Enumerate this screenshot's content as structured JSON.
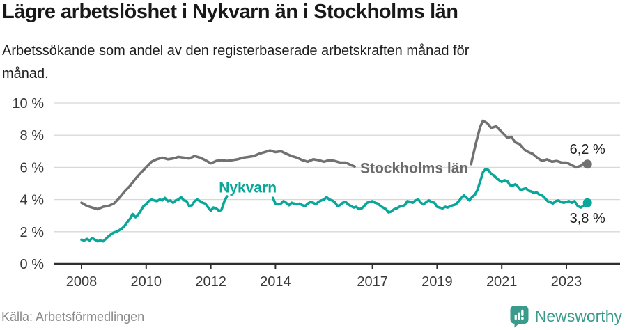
{
  "header": {
    "title": "Lägre arbetslöshet i Nykvarn än i Stockholms län",
    "subtitle_lines": [
      "Arbetssökande som andel av den registerbaserade arbetskraften månad för",
      "månad."
    ]
  },
  "footer": {
    "source": "Källa: Arbetsförmedlingen",
    "brand_name": "Newsworthy",
    "brand_icon": "bar-chart-speech-bubble-icon"
  },
  "colors": {
    "series_gray": "#717171",
    "series_gray_label": "#6b6b6b",
    "series_teal": "#0aa69a",
    "brand_teal": "#3a9a8c",
    "gridline": "#d8d8d8",
    "axis": "#2f2f2f",
    "tick_text": "#383838",
    "value_text": "#1f1f1f"
  },
  "chart_data": {
    "type": "line",
    "unit": "%",
    "grid": "horizontal",
    "x_axis": {
      "tick_years": [
        2008,
        2010,
        2012,
        2014,
        2017,
        2019,
        2021,
        2023
      ],
      "range_years": [
        2008,
        2023.65
      ]
    },
    "y_axis": {
      "tick_values": [
        0,
        2,
        4,
        6,
        8,
        10
      ],
      "tick_labels": [
        "0 %",
        "2 %",
        "4 %",
        "6 %",
        "8 %",
        "10 %"
      ],
      "range": [
        0,
        10
      ]
    },
    "series": [
      {
        "id": "stockholms-lan",
        "name": "Stockholms län",
        "color": "#717171",
        "label_color": "#6b6b6b",
        "inline_label": {
          "text": "Stockholms län",
          "x": 2016.62,
          "y": 5.95
        },
        "end_label": "6,2 %",
        "end_value": 6.2,
        "end_label_position": "above",
        "segments": [
          [
            [
              2008.0,
              3.8
            ],
            [
              2008.17,
              3.6
            ],
            [
              2008.33,
              3.5
            ],
            [
              2008.5,
              3.4
            ],
            [
              2008.67,
              3.55
            ],
            [
              2008.83,
              3.6
            ],
            [
              2009.0,
              3.75
            ],
            [
              2009.17,
              4.1
            ],
            [
              2009.33,
              4.5
            ],
            [
              2009.5,
              4.85
            ],
            [
              2009.67,
              5.3
            ],
            [
              2009.83,
              5.65
            ],
            [
              2010.0,
              6.0
            ],
            [
              2010.17,
              6.35
            ],
            [
              2010.33,
              6.5
            ],
            [
              2010.5,
              6.6
            ],
            [
              2010.67,
              6.5
            ],
            [
              2010.83,
              6.55
            ],
            [
              2011.0,
              6.65
            ],
            [
              2011.17,
              6.6
            ],
            [
              2011.33,
              6.55
            ],
            [
              2011.5,
              6.7
            ],
            [
              2011.67,
              6.6
            ],
            [
              2011.83,
              6.45
            ],
            [
              2012.0,
              6.25
            ],
            [
              2012.17,
              6.4
            ],
            [
              2012.33,
              6.45
            ],
            [
              2012.5,
              6.4
            ],
            [
              2012.67,
              6.45
            ],
            [
              2012.83,
              6.5
            ],
            [
              2013.0,
              6.6
            ],
            [
              2013.17,
              6.65
            ],
            [
              2013.33,
              6.7
            ],
            [
              2013.5,
              6.85
            ],
            [
              2013.67,
              6.95
            ],
            [
              2013.83,
              7.05
            ],
            [
              2014.0,
              6.95
            ],
            [
              2014.17,
              7.0
            ],
            [
              2014.33,
              6.85
            ],
            [
              2014.5,
              6.7
            ],
            [
              2014.67,
              6.6
            ],
            [
              2014.83,
              6.45
            ],
            [
              2015.0,
              6.35
            ],
            [
              2015.17,
              6.5
            ],
            [
              2015.33,
              6.45
            ],
            [
              2015.5,
              6.35
            ],
            [
              2015.67,
              6.45
            ],
            [
              2015.83,
              6.4
            ],
            [
              2016.0,
              6.3
            ],
            [
              2016.17,
              6.3
            ],
            [
              2016.33,
              6.15
            ],
            [
              2016.45,
              6.05
            ]
          ],
          [
            [
              2020.05,
              6.2
            ],
            [
              2020.2,
              7.5
            ],
            [
              2020.33,
              8.5
            ],
            [
              2020.42,
              8.9
            ],
            [
              2020.55,
              8.75
            ],
            [
              2020.67,
              8.45
            ],
            [
              2020.83,
              8.55
            ],
            [
              2020.95,
              8.3
            ],
            [
              2021.05,
              8.1
            ],
            [
              2021.17,
              7.85
            ],
            [
              2021.3,
              7.9
            ],
            [
              2021.42,
              7.55
            ],
            [
              2021.55,
              7.45
            ],
            [
              2021.7,
              7.1
            ],
            [
              2021.83,
              6.95
            ],
            [
              2021.95,
              6.85
            ],
            [
              2022.1,
              6.6
            ],
            [
              2022.25,
              6.4
            ],
            [
              2022.4,
              6.5
            ],
            [
              2022.55,
              6.35
            ],
            [
              2022.7,
              6.4
            ],
            [
              2022.85,
              6.3
            ],
            [
              2023.0,
              6.3
            ],
            [
              2023.15,
              6.15
            ],
            [
              2023.3,
              6.0
            ],
            [
              2023.45,
              6.1
            ],
            [
              2023.55,
              6.3
            ],
            [
              2023.65,
              6.2
            ]
          ]
        ]
      },
      {
        "id": "nykvarn",
        "name": "Nykvarn",
        "color": "#0aa69a",
        "label_color": "#0aa69a",
        "inline_label": {
          "text": "Nykvarn",
          "x": 2012.25,
          "y": 4.75
        },
        "end_label": "3,8 %",
        "end_value": 3.8,
        "end_label_position": "below",
        "segments": [
          [
            [
              2008.0,
              1.5
            ],
            [
              2008.08,
              1.45
            ],
            [
              2008.17,
              1.55
            ],
            [
              2008.25,
              1.45
            ],
            [
              2008.33,
              1.6
            ],
            [
              2008.42,
              1.5
            ],
            [
              2008.5,
              1.4
            ],
            [
              2008.58,
              1.45
            ],
            [
              2008.67,
              1.4
            ],
            [
              2008.75,
              1.55
            ],
            [
              2008.83,
              1.7
            ],
            [
              2008.92,
              1.85
            ],
            [
              2009.0,
              1.95
            ],
            [
              2009.08,
              2.0
            ],
            [
              2009.17,
              2.1
            ],
            [
              2009.25,
              2.2
            ],
            [
              2009.33,
              2.35
            ],
            [
              2009.42,
              2.6
            ],
            [
              2009.5,
              2.8
            ],
            [
              2009.58,
              3.1
            ],
            [
              2009.67,
              2.9
            ],
            [
              2009.75,
              3.05
            ],
            [
              2009.83,
              3.3
            ],
            [
              2009.92,
              3.6
            ],
            [
              2010.0,
              3.7
            ],
            [
              2010.08,
              3.9
            ],
            [
              2010.17,
              4.0
            ],
            [
              2010.25,
              3.95
            ],
            [
              2010.33,
              3.9
            ],
            [
              2010.42,
              4.0
            ],
            [
              2010.5,
              3.95
            ],
            [
              2010.58,
              4.1
            ],
            [
              2010.67,
              3.9
            ],
            [
              2010.75,
              3.95
            ],
            [
              2010.83,
              3.8
            ],
            [
              2010.92,
              3.95
            ],
            [
              2011.0,
              4.0
            ],
            [
              2011.08,
              4.15
            ],
            [
              2011.17,
              3.95
            ],
            [
              2011.25,
              3.9
            ],
            [
              2011.33,
              3.6
            ],
            [
              2011.42,
              3.65
            ],
            [
              2011.5,
              3.9
            ],
            [
              2011.58,
              4.0
            ],
            [
              2011.67,
              3.9
            ],
            [
              2011.75,
              3.8
            ],
            [
              2011.83,
              3.75
            ],
            [
              2011.92,
              3.5
            ],
            [
              2012.0,
              3.3
            ],
            [
              2012.08,
              3.5
            ],
            [
              2012.17,
              3.45
            ],
            [
              2012.25,
              3.3
            ],
            [
              2012.33,
              3.35
            ],
            [
              2012.42,
              3.9
            ],
            [
              2012.5,
              4.2
            ]
          ],
          [
            [
              2013.92,
              4.1
            ],
            [
              2014.0,
              3.75
            ],
            [
              2014.08,
              3.7
            ],
            [
              2014.17,
              3.75
            ],
            [
              2014.25,
              3.9
            ],
            [
              2014.33,
              3.8
            ],
            [
              2014.42,
              3.65
            ],
            [
              2014.5,
              3.8
            ],
            [
              2014.58,
              3.75
            ],
            [
              2014.67,
              3.7
            ],
            [
              2014.75,
              3.75
            ],
            [
              2014.83,
              3.65
            ],
            [
              2014.92,
              3.6
            ],
            [
              2015.0,
              3.75
            ],
            [
              2015.08,
              3.85
            ],
            [
              2015.17,
              3.8
            ],
            [
              2015.25,
              3.7
            ],
            [
              2015.33,
              3.85
            ],
            [
              2015.42,
              3.95
            ],
            [
              2015.5,
              4.0
            ],
            [
              2015.58,
              4.15
            ],
            [
              2015.67,
              4.0
            ],
            [
              2015.75,
              3.95
            ],
            [
              2015.83,
              3.85
            ],
            [
              2015.92,
              3.6
            ],
            [
              2016.0,
              3.65
            ],
            [
              2016.08,
              3.8
            ],
            [
              2016.17,
              3.85
            ],
            [
              2016.25,
              3.7
            ],
            [
              2016.33,
              3.6
            ],
            [
              2016.42,
              3.5
            ],
            [
              2016.5,
              3.55
            ],
            [
              2016.58,
              3.4
            ],
            [
              2016.67,
              3.45
            ],
            [
              2016.75,
              3.6
            ],
            [
              2016.83,
              3.8
            ],
            [
              2016.92,
              3.85
            ],
            [
              2017.0,
              3.9
            ],
            [
              2017.08,
              3.8
            ],
            [
              2017.17,
              3.75
            ],
            [
              2017.25,
              3.6
            ],
            [
              2017.33,
              3.5
            ],
            [
              2017.42,
              3.4
            ],
            [
              2017.5,
              3.2
            ],
            [
              2017.58,
              3.25
            ],
            [
              2017.67,
              3.4
            ],
            [
              2017.75,
              3.45
            ],
            [
              2017.83,
              3.55
            ],
            [
              2017.92,
              3.6
            ],
            [
              2018.0,
              3.65
            ],
            [
              2018.08,
              3.9
            ],
            [
              2018.17,
              3.85
            ],
            [
              2018.25,
              3.8
            ],
            [
              2018.33,
              3.95
            ],
            [
              2018.42,
              4.0
            ],
            [
              2018.5,
              3.8
            ],
            [
              2018.58,
              3.7
            ],
            [
              2018.67,
              3.85
            ],
            [
              2018.75,
              3.95
            ],
            [
              2018.83,
              3.85
            ],
            [
              2018.92,
              3.8
            ],
            [
              2019.0,
              3.55
            ],
            [
              2019.08,
              3.5
            ],
            [
              2019.17,
              3.45
            ],
            [
              2019.25,
              3.55
            ],
            [
              2019.33,
              3.5
            ],
            [
              2019.42,
              3.6
            ],
            [
              2019.5,
              3.65
            ],
            [
              2019.58,
              3.7
            ],
            [
              2019.67,
              3.9
            ],
            [
              2019.75,
              4.1
            ],
            [
              2019.83,
              4.25
            ],
            [
              2019.92,
              4.1
            ],
            [
              2020.0,
              3.95
            ],
            [
              2020.08,
              4.15
            ],
            [
              2020.17,
              4.3
            ],
            [
              2020.25,
              4.6
            ],
            [
              2020.33,
              5.1
            ],
            [
              2020.42,
              5.7
            ],
            [
              2020.5,
              5.9
            ],
            [
              2020.58,
              5.85
            ],
            [
              2020.67,
              5.6
            ],
            [
              2020.75,
              5.5
            ],
            [
              2020.83,
              5.35
            ],
            [
              2020.92,
              5.2
            ],
            [
              2021.0,
              5.1
            ],
            [
              2021.08,
              5.2
            ],
            [
              2021.17,
              5.15
            ],
            [
              2021.25,
              4.9
            ],
            [
              2021.33,
              4.85
            ],
            [
              2021.42,
              4.95
            ],
            [
              2021.5,
              4.8
            ],
            [
              2021.58,
              4.6
            ],
            [
              2021.67,
              4.65
            ],
            [
              2021.75,
              4.7
            ],
            [
              2021.83,
              4.55
            ],
            [
              2021.92,
              4.5
            ],
            [
              2022.0,
              4.4
            ],
            [
              2022.08,
              4.45
            ],
            [
              2022.17,
              4.3
            ],
            [
              2022.25,
              4.25
            ],
            [
              2022.33,
              4.1
            ],
            [
              2022.42,
              3.9
            ],
            [
              2022.5,
              3.85
            ],
            [
              2022.58,
              3.75
            ],
            [
              2022.67,
              3.9
            ],
            [
              2022.75,
              3.95
            ],
            [
              2022.83,
              3.85
            ],
            [
              2022.92,
              3.8
            ],
            [
              2023.0,
              3.85
            ],
            [
              2023.08,
              3.9
            ],
            [
              2023.17,
              3.8
            ],
            [
              2023.25,
              3.9
            ],
            [
              2023.35,
              3.6
            ],
            [
              2023.45,
              3.5
            ],
            [
              2023.55,
              3.65
            ],
            [
              2023.65,
              3.8
            ]
          ]
        ]
      }
    ]
  }
}
